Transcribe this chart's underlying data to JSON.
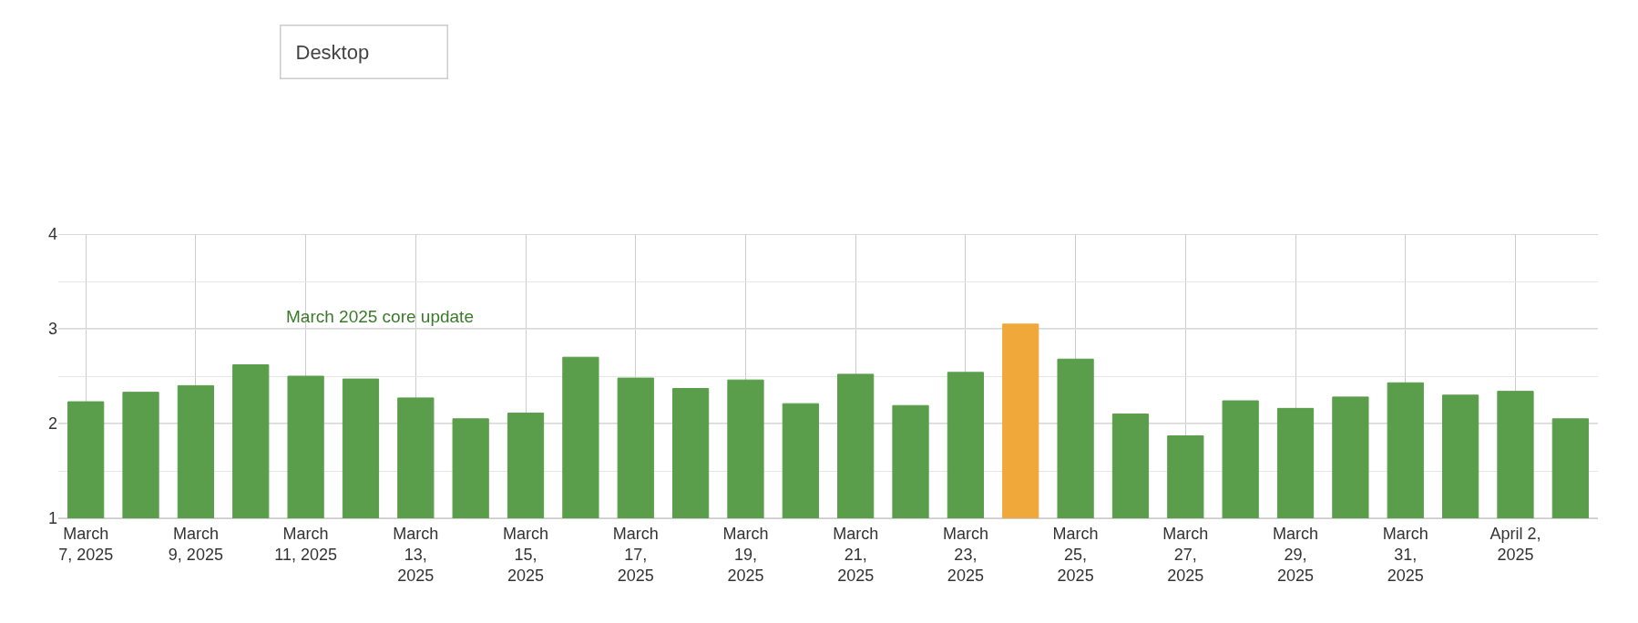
{
  "chart_data": {
    "type": "bar",
    "categories": [
      "March\n7, 2025",
      null,
      "March\n9, 2025",
      null,
      "March\n11, 2025",
      null,
      "March\n13,\n2025",
      null,
      "March\n15,\n2025",
      null,
      "March\n17,\n2025",
      null,
      "March\n19,\n2025",
      null,
      "March\n21,\n2025",
      null,
      "March\n23,\n2025",
      null,
      "March\n25,\n2025",
      null,
      "March\n27,\n2025",
      null,
      "March\n29,\n2025",
      null,
      "March\n31,\n2025",
      null,
      "April 2,\n2025",
      null
    ],
    "values": [
      2.23,
      2.33,
      2.4,
      2.62,
      2.5,
      2.47,
      2.27,
      2.05,
      2.11,
      2.7,
      2.48,
      2.37,
      2.46,
      2.21,
      2.52,
      2.19,
      2.54,
      3.05,
      2.68,
      2.1,
      1.87,
      2.24,
      2.16,
      2.28,
      2.43,
      2.3,
      2.34,
      2.05
    ],
    "colors": [
      "#5a9e4b",
      "#5a9e4b",
      "#5a9e4b",
      "#5a9e4b",
      "#5a9e4b",
      "#5a9e4b",
      "#5a9e4b",
      "#5a9e4b",
      "#5a9e4b",
      "#5a9e4b",
      "#5a9e4b",
      "#5a9e4b",
      "#5a9e4b",
      "#5a9e4b",
      "#5a9e4b",
      "#5a9e4b",
      "#5a9e4b",
      "#f0a83a",
      "#5a9e4b",
      "#5a9e4b",
      "#5a9e4b",
      "#5a9e4b",
      "#5a9e4b",
      "#5a9e4b",
      "#5a9e4b",
      "#5a9e4b",
      "#5a9e4b",
      "#5a9e4b"
    ],
    "ylim": [
      1,
      4
    ],
    "yticks": [
      1,
      {
        "value": 1.5,
        "label": null
      },
      2,
      {
        "value": 2.5,
        "label": null
      },
      3,
      {
        "value": 3.5,
        "label": null
      },
      4
    ],
    "grid": true,
    "annotations": [
      "March 2025 core update",
      "Desktop"
    ]
  }
}
